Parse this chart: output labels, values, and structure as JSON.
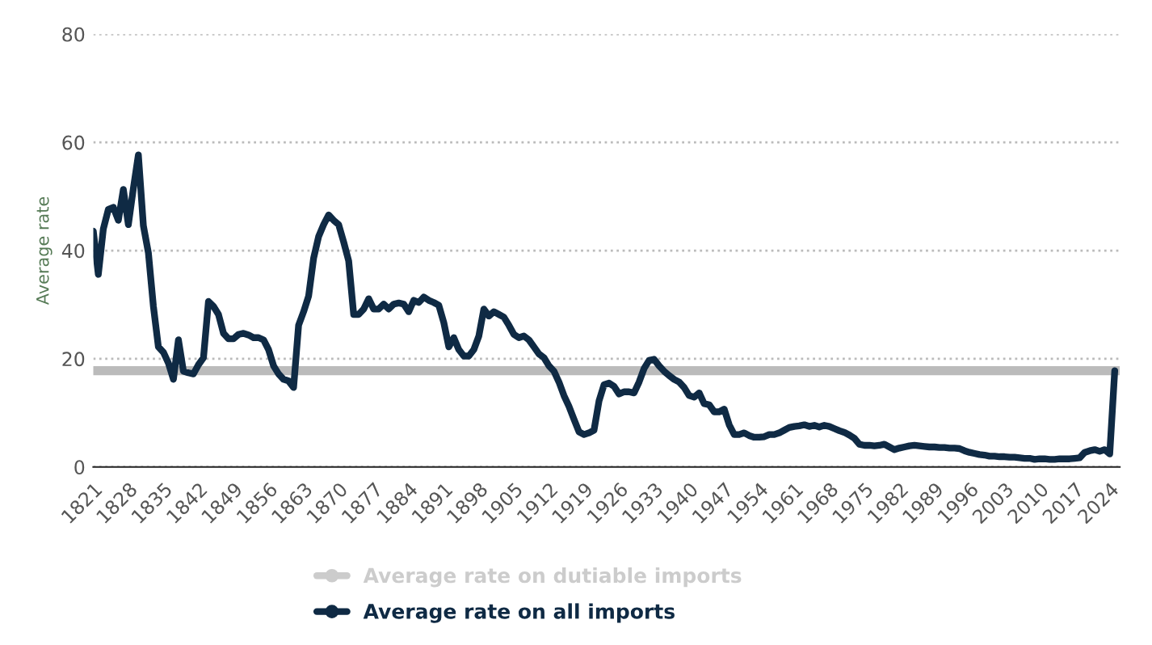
{
  "chart_data": {
    "type": "line",
    "ylabel": "Average rate",
    "xlim": [
      1821,
      2026
    ],
    "xticks": [
      1821,
      1828,
      1835,
      1842,
      1849,
      1856,
      1863,
      1870,
      1877,
      1884,
      1891,
      1898,
      1905,
      1912,
      1919,
      1926,
      1933,
      1940,
      1947,
      1954,
      1961,
      1968,
      1975,
      1982,
      1989,
      1996,
      2003,
      2010,
      2017,
      2024
    ],
    "ylim": [
      0,
      80
    ],
    "yticks": [
      0,
      20,
      40,
      60,
      80
    ],
    "grid": "y",
    "legend": "bottom",
    "marker": "none",
    "line_style": "solid",
    "ref_lines": [
      {
        "axis": "y",
        "value": 17.8,
        "color": "#bbbbbb"
      }
    ],
    "series": [
      {
        "name": "Average rate on dutiable imports",
        "color": "#cccccc"
      },
      {
        "name": "Average rate on all imports",
        "color": "#0f2a44",
        "x": [
          1821,
          1822,
          1823,
          1824,
          1825,
          1826,
          1827,
          1828,
          1829,
          1830,
          1831,
          1832,
          1833,
          1834,
          1835,
          1836,
          1837,
          1838,
          1839,
          1840,
          1841,
          1842,
          1843,
          1844,
          1845,
          1846,
          1847,
          1848,
          1849,
          1850,
          1851,
          1852,
          1853,
          1854,
          1855,
          1856,
          1857,
          1858,
          1859,
          1860,
          1861,
          1862,
          1863,
          1864,
          1865,
          1866,
          1867,
          1868,
          1869,
          1870,
          1871,
          1872,
          1873,
          1874,
          1875,
          1876,
          1877,
          1878,
          1879,
          1880,
          1881,
          1882,
          1883,
          1884,
          1885,
          1886,
          1887,
          1888,
          1889,
          1890,
          1891,
          1892,
          1893,
          1894,
          1895,
          1896,
          1897,
          1898,
          1899,
          1900,
          1901,
          1902,
          1903,
          1904,
          1905,
          1906,
          1907,
          1908,
          1909,
          1910,
          1911,
          1912,
          1913,
          1914,
          1915,
          1916,
          1917,
          1918,
          1919,
          1920,
          1921,
          1922,
          1923,
          1924,
          1925,
          1926,
          1927,
          1928,
          1929,
          1930,
          1931,
          1932,
          1933,
          1934,
          1935,
          1936,
          1937,
          1938,
          1939,
          1940,
          1941,
          1942,
          1943,
          1944,
          1945,
          1946,
          1947,
          1948,
          1949,
          1950,
          1951,
          1952,
          1953,
          1954,
          1955,
          1956,
          1957,
          1958,
          1959,
          1960,
          1961,
          1962,
          1963,
          1964,
          1965,
          1966,
          1967,
          1968,
          1969,
          1970,
          1971,
          1972,
          1973,
          1974,
          1975,
          1976,
          1977,
          1978,
          1979,
          1980,
          1981,
          1982,
          1983,
          1984,
          1985,
          1986,
          1987,
          1988,
          1989,
          1990,
          1991,
          1992,
          1993,
          1994,
          1995,
          1996,
          1997,
          1998,
          1999,
          2000,
          2001,
          2002,
          2003,
          2004,
          2005,
          2006,
          2007,
          2008,
          2009,
          2010,
          2011,
          2012,
          2013,
          2014,
          2015,
          2016,
          2017,
          2018,
          2019,
          2020,
          2021,
          2022,
          2023,
          2024,
          2025
        ],
        "values": [
          43.6,
          35.6,
          44,
          47.6,
          48,
          45.6,
          51.3,
          44.8,
          51.5,
          57.7,
          44.6,
          39.6,
          29.7,
          22.2,
          21.2,
          19.2,
          16.2,
          23.5,
          17.7,
          17.4,
          17.2,
          18.9,
          20.2,
          30.6,
          29.7,
          28.2,
          24.7,
          23.7,
          23.7,
          24.5,
          24.7,
          24.4,
          23.9,
          23.9,
          23.5,
          21.7,
          18.7,
          17.2,
          16.2,
          15.9,
          14.7,
          26.2,
          28.7,
          31.6,
          38.6,
          42.6,
          44.8,
          46.6,
          45.6,
          44.8,
          41.6,
          38.1,
          28.2,
          28.2,
          29.2,
          31.1,
          29.2,
          29.2,
          30.1,
          29.2,
          30.1,
          30.3,
          30.1,
          28.7,
          30.8,
          30.4,
          31.4,
          30.8,
          30.4,
          29.9,
          26.7,
          22.2,
          23.9,
          21.7,
          20.5,
          20.5,
          21.7,
          24.2,
          29.2,
          27.9,
          28.7,
          28.2,
          27.7,
          26.2,
          24.5,
          23.9,
          24.2,
          23.5,
          22.2,
          20.9,
          20.2,
          18.7,
          17.7,
          15.7,
          13.2,
          11.2,
          8.8,
          6.5,
          6.0,
          6.3,
          6.8,
          12.2,
          15.2,
          15.5,
          14.9,
          13.5,
          13.9,
          13.9,
          13.7,
          15.7,
          18.2,
          19.7,
          19.9,
          18.7,
          17.7,
          16.9,
          16.2,
          15.7,
          14.7,
          13.2,
          12.9,
          13.7,
          11.7,
          11.5,
          10.2,
          10.2,
          10.7,
          7.8,
          6.0,
          6.0,
          6.3,
          5.8,
          5.5,
          5.5,
          5.6,
          6.0,
          6.0,
          6.3,
          6.8,
          7.3,
          7.5,
          7.6,
          7.8,
          7.5,
          7.7,
          7.4,
          7.7,
          7.5,
          7.1,
          6.7,
          6.4,
          5.9,
          5.3,
          4.2,
          4.0,
          4.0,
          3.9,
          4.0,
          4.2,
          3.7,
          3.2,
          3.5,
          3.7,
          3.9,
          4.0,
          3.9,
          3.8,
          3.7,
          3.7,
          3.6,
          3.6,
          3.5,
          3.5,
          3.4,
          3.0,
          2.7,
          2.5,
          2.3,
          2.2,
          2.0,
          2.0,
          1.9,
          1.9,
          1.8,
          1.8,
          1.7,
          1.6,
          1.6,
          1.4,
          1.5,
          1.5,
          1.4,
          1.4,
          1.5,
          1.5,
          1.5,
          1.6,
          1.7,
          2.7,
          3.0,
          3.2,
          2.9,
          3.2,
          2.4,
          17.8
        ]
      }
    ]
  }
}
